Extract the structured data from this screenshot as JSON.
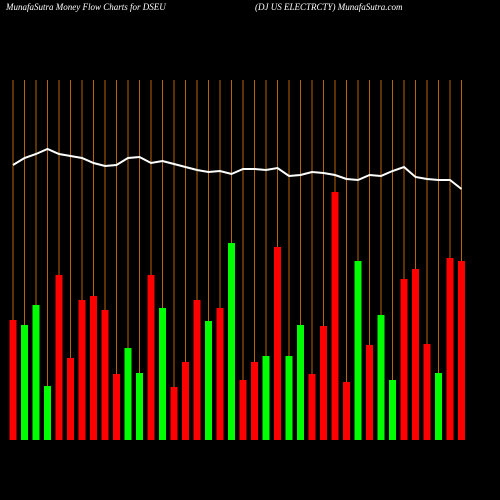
{
  "chart_data": {
    "type": "bar",
    "title": "MunafaSutra  Money Flow  Charts for DSEU",
    "subtitle": "(DJ US ELECTRCTY) MunafaSutra.com",
    "series": [
      {
        "name": "Money Flow",
        "colors": [
          "#ff0000",
          "#00ff00",
          "#00ff00",
          "#00ff00",
          "#ff0000",
          "#ff0000",
          "#ff0000",
          "#ff0000",
          "#ff0000",
          "#ff0000",
          "#00ff00",
          "#00ff00",
          "#ff0000",
          "#00ff00",
          "#ff0000",
          "#ff0000",
          "#ff0000",
          "#00ff00",
          "#ff0000",
          "#00ff00",
          "#ff0000",
          "#ff0000",
          "#00ff00",
          "#ff0000",
          "#00ff00",
          "#00ff00",
          "#ff0000",
          "#ff0000",
          "#ff0000",
          "#ff0000",
          "#00ff00",
          "#ff0000",
          "#00ff00",
          "#00ff00",
          "#ff0000",
          "#ff0000",
          "#ff0000",
          "#00ff00",
          "#ff0000",
          "#ff0000"
        ],
        "values": [
          120,
          115,
          135,
          54,
          165,
          82,
          140,
          144,
          130,
          66,
          92,
          67,
          165,
          132,
          53,
          78,
          140,
          119,
          132,
          197,
          60,
          78,
          84,
          193,
          84,
          115,
          66,
          114,
          248,
          58,
          179,
          95,
          125,
          60,
          161,
          171,
          96,
          67,
          182,
          179
        ]
      },
      {
        "name": "Price",
        "color": "#ffffff",
        "values": [
          275,
          282,
          286,
          291,
          286,
          284,
          282,
          277,
          274,
          275,
          282,
          283,
          277,
          279,
          276,
          273,
          270,
          268,
          269,
          266,
          271,
          271,
          270,
          272,
          264,
          265,
          268,
          267,
          265,
          261,
          260,
          265,
          264,
          269,
          273,
          263,
          261,
          260,
          260,
          251
        ]
      }
    ],
    "grid_color": "#b8650a"
  }
}
